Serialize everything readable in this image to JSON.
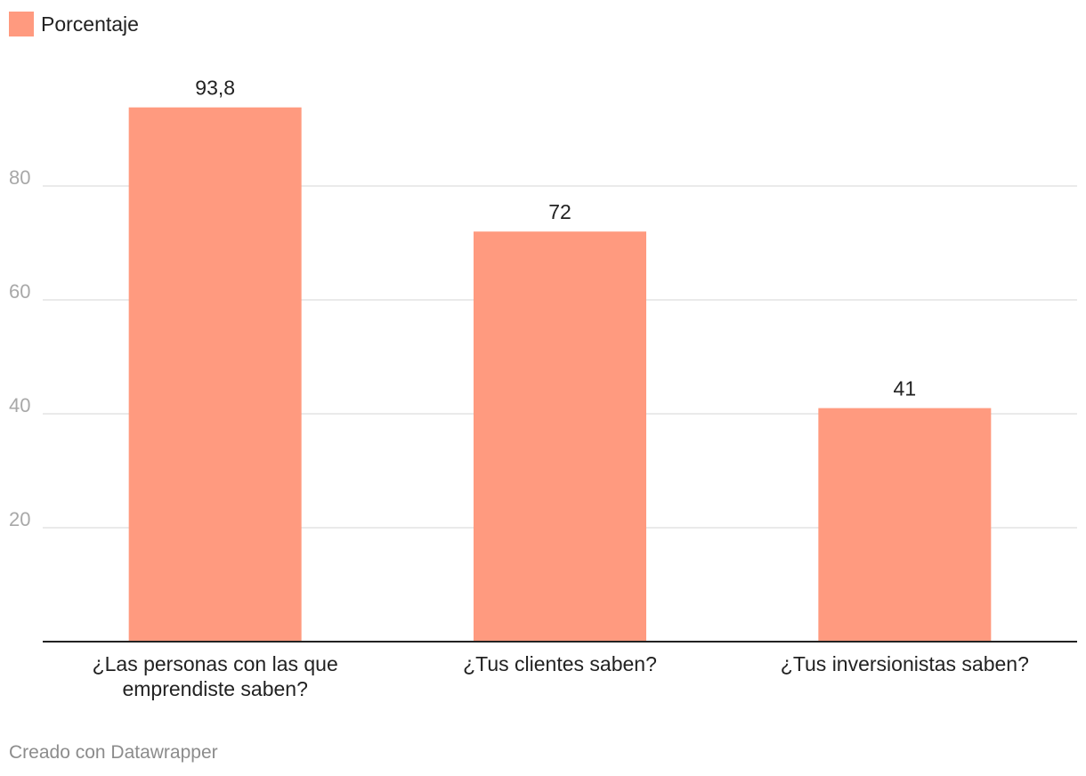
{
  "chart_data": {
    "type": "bar",
    "title": "",
    "xlabel": "",
    "ylabel": "",
    "legend": {
      "label": "Porcentaje",
      "placement": "top-left"
    },
    "categories": [
      [
        "¿Las personas con las que",
        "emprendiste saben?"
      ],
      [
        "¿Tus clientes saben?"
      ],
      [
        "¿Tus inversionistas saben?"
      ]
    ],
    "series": [
      {
        "name": "Porcentaje",
        "values": [
          93.8,
          72,
          41
        ],
        "value_labels": [
          "93,8",
          "72",
          "41"
        ],
        "color": "#ff9a7f"
      }
    ],
    "y_ticks": [
      20,
      40,
      60,
      80
    ],
    "ylim": [
      0,
      100
    ],
    "grid": true
  },
  "footer": {
    "credit": "Creado con Datawrapper"
  },
  "colors": {
    "bar": "#ff9a7f",
    "grid": "#e3e3e3",
    "axis": "#222222",
    "tick_label": "#a8a8a8",
    "text": "#222222",
    "footer": "#8c8c8c"
  }
}
